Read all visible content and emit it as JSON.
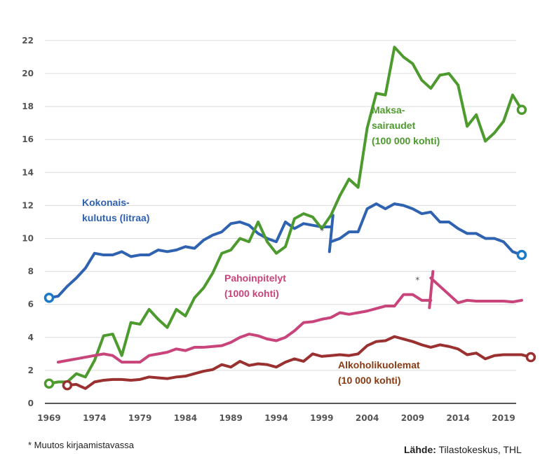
{
  "chart_data": {
    "type": "line",
    "title": "",
    "xlabel": "",
    "ylabel": "",
    "ylim": [
      0,
      22
    ],
    "xlim": [
      1969,
      2021
    ],
    "yticks": [
      0,
      2,
      4,
      6,
      8,
      10,
      12,
      14,
      16,
      18,
      20,
      22
    ],
    "xticks": [
      1969,
      1974,
      1979,
      1984,
      1989,
      1994,
      1999,
      2004,
      2009,
      2014,
      2019
    ],
    "grid": true,
    "series": [
      {
        "name": "Kokonaiskulutus (litraa)",
        "label_lines": [
          "Kokonais-",
          "kulutus (litraa)"
        ],
        "color": "#2f62b1",
        "end_marker_color": "#1a7ac8",
        "segments": [
          {
            "x_start": 1969,
            "values": [
              6.4,
              6.5,
              7.1,
              7.6,
              8.2,
              9.1,
              9.0,
              9.0,
              9.2,
              8.9,
              9.0,
              9.0,
              9.3,
              9.2,
              9.3,
              9.5,
              9.4,
              9.9,
              10.2,
              10.4,
              10.9,
              11.0,
              10.8,
              10.3,
              10.0,
              9.8,
              11.0,
              10.6,
              10.9,
              10.8,
              10.7,
              10.7
            ]
          },
          {
            "x_start": 2000,
            "values": [
              9.8,
              10.0,
              10.4,
              10.4,
              11.8,
              12.1,
              11.8,
              12.1,
              12.0,
              11.8,
              11.5,
              11.6,
              11.0,
              11.0,
              10.6,
              10.3,
              10.3,
              10.0,
              10.0,
              9.8,
              9.2,
              9.0
            ]
          }
        ],
        "break_year": 2000,
        "break_range": [
          9.2,
          11.4
        ]
      },
      {
        "name": "Maksasairaudet (100 000 kohti)",
        "label_lines": [
          "Maksa-",
          "sairaudet",
          "(100 000 kohti)"
        ],
        "color": "#4d9a2e",
        "segments": [
          {
            "x_start": 1969,
            "values": [
              1.2,
              1.3,
              1.3,
              1.8,
              1.6,
              2.6,
              4.1,
              4.2,
              2.9,
              4.9,
              4.8,
              5.7,
              5.1,
              4.6,
              5.7,
              5.3,
              6.4,
              7.0,
              7.9,
              9.1,
              9.3,
              10.0,
              9.8,
              11.0,
              9.8,
              9.1,
              9.5,
              11.2,
              11.5,
              11.3,
              10.6,
              11.4,
              12.6,
              13.6,
              13.1,
              16.7,
              18.8,
              18.7,
              21.6,
              21.0,
              20.6,
              19.6,
              19.1,
              19.9,
              20.0,
              19.3,
              16.8,
              17.5,
              15.9,
              16.4,
              17.1,
              18.7,
              17.8
            ]
          }
        ]
      },
      {
        "name": "Pahoinpitelyt (1000 kohti)",
        "label_lines": [
          "Pahoinpitelyt",
          "(1000 kohti)"
        ],
        "color": "#c8447a",
        "segments": [
          {
            "x_start": 1970,
            "values": [
              2.5,
              2.6,
              2.7,
              2.8,
              2.9,
              3.0,
              2.9,
              2.5,
              2.5,
              2.5,
              2.9,
              3.0,
              3.1,
              3.3,
              3.2,
              3.4,
              3.4,
              3.45,
              3.5,
              3.7,
              4.0,
              4.2,
              4.1,
              3.9,
              3.8,
              4.0,
              4.4,
              4.9,
              4.95,
              5.1,
              5.2,
              5.5,
              5.4,
              5.5,
              5.6,
              5.75,
              5.9,
              5.9,
              6.6,
              6.6,
              6.25,
              6.25
            ]
          },
          {
            "x_start": 2011,
            "values": [
              7.6,
              7.1,
              6.6,
              6.1,
              6.25,
              6.2,
              6.2,
              6.2,
              6.2,
              6.15,
              6.25
            ]
          }
        ],
        "break_year": 2011,
        "break_range": [
          5.8,
          8.0
        ]
      },
      {
        "name": "Alkoholikuolemat (10 000 kohti)",
        "label_lines": [
          "Alkoholikuolemat",
          "(10 000 kohti)"
        ],
        "color": "#9a3030",
        "label_color": "#8a3a12",
        "segments": [
          {
            "x_start": 1971,
            "values": [
              1.1,
              1.15,
              0.9,
              1.3,
              1.4,
              1.45,
              1.45,
              1.4,
              1.45,
              1.6,
              1.55,
              1.5,
              1.6,
              1.65,
              1.8,
              1.95,
              2.05,
              2.35,
              2.2,
              2.55,
              2.3,
              2.4,
              2.35,
              2.2,
              2.5,
              2.7,
              2.55,
              3.0,
              2.85,
              2.9,
              2.95,
              2.9,
              3.0,
              3.5,
              3.75,
              3.8,
              4.05,
              3.9,
              3.75,
              3.55,
              3.4,
              3.55,
              3.45,
              3.3,
              2.95,
              3.05,
              2.7,
              2.9,
              2.95,
              2.95,
              2.95,
              2.8
            ]
          }
        ]
      }
    ],
    "annotations": [
      {
        "text": "*",
        "near": "Kokonaiskulutus break",
        "x": 1998.8,
        "y": 10.3
      },
      {
        "text": "*",
        "near": "Pahoinpitelyt break",
        "x": 2009.3,
        "y": 7.3
      }
    ]
  },
  "footnote": "* Muutos kirjaamistavassa",
  "source": {
    "label": "Lähde:",
    "text": " Tilastokeskus, THL"
  }
}
